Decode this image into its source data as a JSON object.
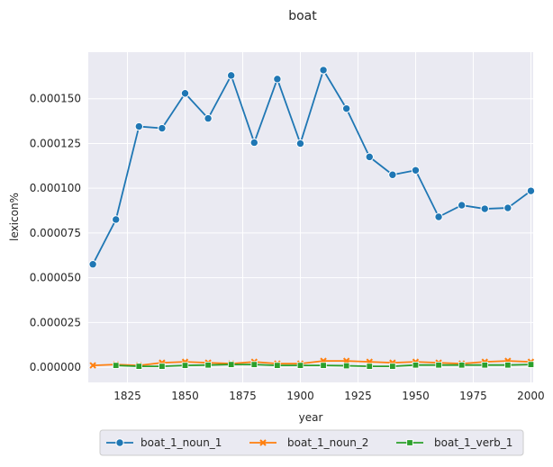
{
  "chart_data": {
    "type": "line",
    "title": "boat",
    "xlabel": "year",
    "ylabel": "lexicon%",
    "xlim": [
      1808,
      2001
    ],
    "ylim": [
      -8.5e-06,
      0.000176
    ],
    "x_ticks": [
      1825,
      1850,
      1875,
      1900,
      1925,
      1950,
      1975,
      2000
    ],
    "y_ticks": [
      0.0,
      2.5e-05,
      5e-05,
      7.5e-05,
      0.0001,
      0.000125,
      0.00015
    ],
    "y_tick_labels": [
      "0.000000",
      "0.000025",
      "0.000050",
      "0.000075",
      "0.000100",
      "0.000125",
      "0.000150"
    ],
    "grid": true,
    "legend_position": "bottom-center",
    "x": [
      1810,
      1820,
      1830,
      1840,
      1850,
      1860,
      1870,
      1880,
      1890,
      1900,
      1910,
      1920,
      1930,
      1940,
      1950,
      1960,
      1970,
      1980,
      1990,
      2000
    ],
    "series": [
      {
        "name": "boat_1_noun_1",
        "color": "#1f77b4",
        "marker": "circle",
        "values": [
          5.75e-05,
          8.25e-05,
          0.0001345,
          0.0001335,
          0.000153,
          0.000139,
          0.000163,
          0.0001255,
          0.000161,
          0.000125,
          0.000166,
          0.0001445,
          0.0001175,
          0.0001075,
          0.00011,
          8.4e-05,
          9.05e-05,
          8.85e-05,
          8.9e-05,
          9.85e-05
        ]
      },
      {
        "name": "boat_1_noun_2",
        "color": "#ff7f0e",
        "marker": "x",
        "values": [
          1e-06,
          1.5e-06,
          1e-06,
          2.5e-06,
          3e-06,
          2.5e-06,
          2e-06,
          3e-06,
          2e-06,
          2e-06,
          3.5e-06,
          3.5e-06,
          3e-06,
          2.5e-06,
          3e-06,
          2.5e-06,
          2e-06,
          3e-06,
          3.5e-06,
          3e-06
        ]
      },
      {
        "name": "boat_1_verb_1",
        "color": "#2ca02c",
        "marker": "square",
        "values": [
          null,
          1e-06,
          5e-07,
          5e-07,
          1e-06,
          1.2e-06,
          1.5e-06,
          1.5e-06,
          1e-06,
          1e-06,
          1e-06,
          8e-07,
          5e-07,
          5e-07,
          1.2e-06,
          1.2e-06,
          1.2e-06,
          1.2e-06,
          1.2e-06,
          1.5e-06
        ]
      }
    ]
  }
}
